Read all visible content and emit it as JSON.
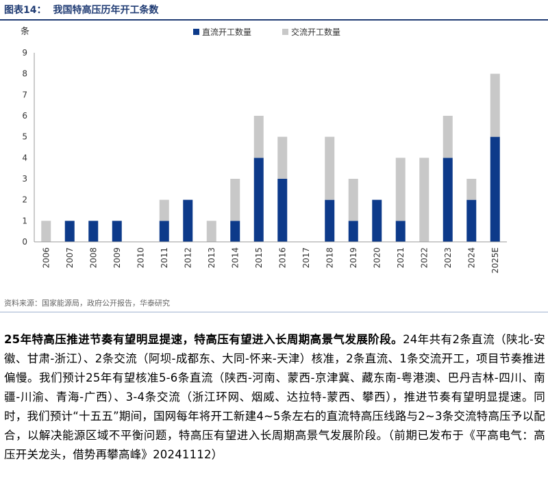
{
  "figure": {
    "number": "图表14：",
    "title": "我国特高压历年开工条数"
  },
  "chart_data": {
    "type": "bar",
    "stacked": true,
    "ylabel": "条",
    "ylim": [
      0,
      9
    ],
    "yticks": [
      0,
      1,
      2,
      3,
      4,
      5,
      6,
      7,
      8,
      9
    ],
    "grid": false,
    "legend": "top-center",
    "categories": [
      "2006",
      "2007",
      "2008",
      "2009",
      "2010",
      "2011",
      "2012",
      "2013",
      "2014",
      "2015",
      "2016",
      "2017",
      "2018",
      "2019",
      "2020",
      "2021",
      "2022",
      "2023",
      "2024",
      "2025E"
    ],
    "series": [
      {
        "name": "直流开工数量",
        "color": "#0d3a8a",
        "values": [
          0,
          1,
          1,
          1,
          0,
          1,
          2,
          0,
          1,
          4,
          3,
          0,
          2,
          1,
          2,
          1,
          0,
          4,
          2,
          5
        ]
      },
      {
        "name": "交流开工数量",
        "color": "#c8c8c8",
        "values": [
          1,
          0,
          0,
          0,
          0,
          1,
          0,
          1,
          2,
          2,
          2,
          0,
          3,
          2,
          0,
          3,
          4,
          2,
          1,
          3
        ]
      }
    ]
  },
  "source": "资料来源：国家能源局，政府公开报告，华泰研究",
  "paragraph": {
    "lead": "25年特高压推进节奏有望明显提速，特高压有望进入长周期高景气发展阶段。",
    "body": "24年共有2条直流（陕北-安徽、甘肃-浙江）、2条交流（阿坝-成都东、大同-怀来-天津）核准，2条直流、1条交流开工，项目节奏推进偏慢。我们预计25年有望核准5-6条直流（陕西-河南、蒙西-京津冀、藏东南-粤港澳、巴丹吉林-四川、南疆-川渝、青海-广西）、3-4条交流（浙江环网、烟威、达拉特-蒙西、攀西），推进节奏有望明显提速。同时，我们预计“十五五”期间，国网每年将开工新建4~5条左右的直流特高压线路与2~3条交流特高压予以配合，以解决能源区域不平衡问题，特高压有望进入长周期高景气发展阶段。（前期已发布于《平高电气：高压开关龙头，借势再攀高峰》20241112）"
  }
}
